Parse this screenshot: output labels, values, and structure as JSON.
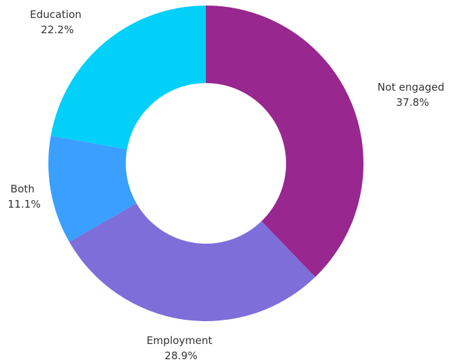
{
  "chart_data": {
    "type": "donut",
    "title": "",
    "legend": "none",
    "start_angle_deg": 0,
    "direction": "clockwise",
    "slices": [
      {
        "label": "Not engaged",
        "value": 37.8,
        "value_label": "37.8%",
        "color": "#98278F"
      },
      {
        "label": "Employment",
        "value": 28.9,
        "value_label": "28.9%",
        "color": "#7E6ED9"
      },
      {
        "label": "Both",
        "value": 11.1,
        "value_label": "11.1%",
        "color": "#3A9FFF"
      },
      {
        "label": "Education",
        "value": 22.2,
        "value_label": "22.2%",
        "color": "#03D0F8"
      }
    ]
  }
}
